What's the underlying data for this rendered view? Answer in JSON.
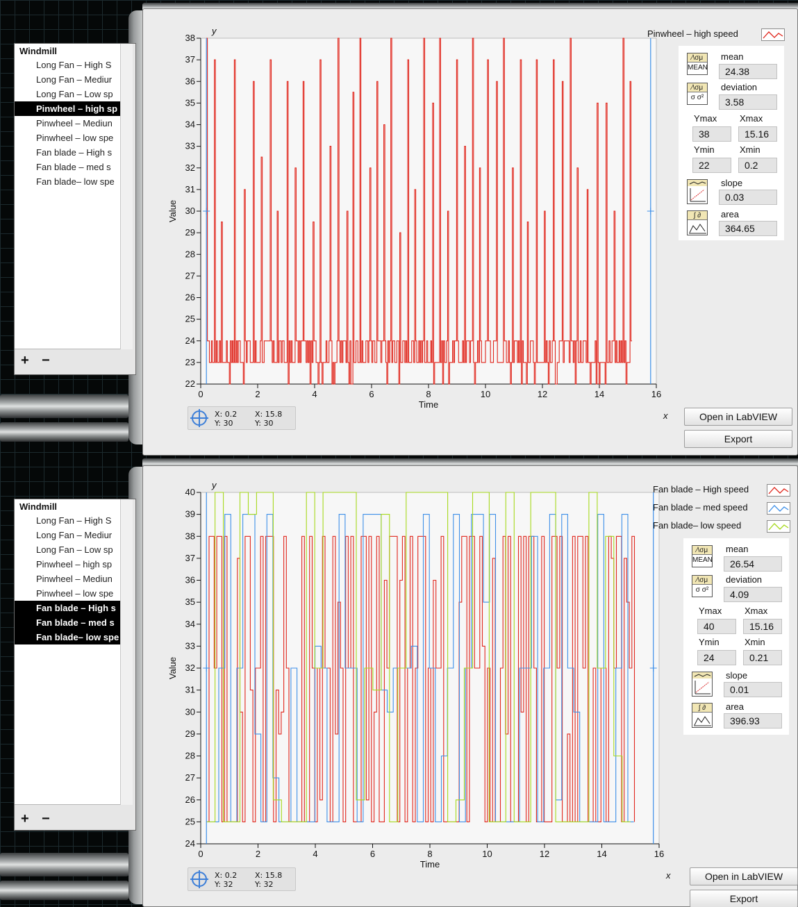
{
  "colors": {
    "red": "#e0251b",
    "blue": "#3d8fe8",
    "green": "#a6d91c"
  },
  "list": {
    "title": "Windmill",
    "items": [
      "Long Fan – High S",
      "Long Fan – Mediur",
      "Long Fan – Low sp",
      "Pinwheel –  high sp",
      "Pinwheel – Mediun",
      "Pinwheel – low spe",
      "Fan blade – High s",
      "Fan blade – med s",
      "Fan blade– low spe"
    ],
    "add_label": "+",
    "remove_label": "−"
  },
  "panels": [
    {
      "selected": [
        3
      ],
      "legend": [
        {
          "name": "Pinwheel –  high speed",
          "color": "red"
        }
      ],
      "stats": {
        "mean": "24.38",
        "deviation": "3.58",
        "ymax": "38",
        "xmax": "15.16",
        "ymin": "22",
        "xmin": "0.2",
        "slope": "0.03",
        "area": "364.65"
      },
      "cursor": {
        "x1": "X:  0.2",
        "y1": "Y:  30",
        "x2": "X:  15.8",
        "y2": "Y:  30"
      }
    },
    {
      "selected": [
        6,
        7,
        8
      ],
      "legend": [
        {
          "name": "Fan blade – High speed",
          "color": "red"
        },
        {
          "name": "Fan blade – med speed",
          "color": "blue"
        },
        {
          "name": "Fan blade– low speed",
          "color": "green"
        }
      ],
      "stats": {
        "mean": "26.54",
        "deviation": "4.09",
        "ymax": "40",
        "xmax": "15.16",
        "ymin": "24",
        "xmin": "0.21",
        "slope": "0.01",
        "area": "396.93"
      },
      "cursor": {
        "x1": "X:  0.2",
        "y1": "Y:  32",
        "x2": "X:  15.8",
        "y2": "Y:  32"
      }
    }
  ],
  "labels": {
    "mean": "mean",
    "deviation": "deviation",
    "ymax": "Ymax",
    "xmax": "Xmax",
    "ymin": "Ymin",
    "xmin": "Xmin",
    "slope": "slope",
    "area": "area",
    "mean_icon": "MEAN",
    "dev_icon": "σ σ²",
    "stat_icon": "⁄\\σμ",
    "area_icon": "∫ ∂",
    "open_button": "Open in LabVIEW",
    "export_button": "Export"
  },
  "chart_data": [
    {
      "type": "line",
      "xlabel": "Time",
      "ylabel": "Value",
      "x_axis_name": "x",
      "y_axis_name": "y",
      "xlim": [
        0,
        16
      ],
      "ylim": [
        22,
        38
      ],
      "xticks": [
        0,
        2,
        4,
        6,
        8,
        10,
        12,
        14,
        16
      ],
      "yticks": [
        22,
        23,
        24,
        25,
        26,
        27,
        28,
        29,
        30,
        31,
        32,
        33,
        34,
        35,
        36,
        37,
        38
      ],
      "cursors_x": [
        0.2,
        15.8
      ],
      "cursor_y": 30,
      "series": [
        {
          "color": "red",
          "baseline": [
            23,
            24
          ],
          "floor": 22,
          "x_range": [
            0.2,
            15.16
          ],
          "spikes": [
            [
              0.2,
              38
            ],
            [
              0.5,
              37
            ],
            [
              0.75,
              29.5
            ],
            [
              1.2,
              37
            ],
            [
              1.55,
              31
            ],
            [
              1.85,
              36
            ],
            [
              2.15,
              32.5
            ],
            [
              2.45,
              37
            ],
            [
              2.7,
              30
            ],
            [
              3.05,
              36
            ],
            [
              3.35,
              32
            ],
            [
              3.6,
              36
            ],
            [
              3.95,
              29.5
            ],
            [
              4.2,
              37
            ],
            [
              4.55,
              33
            ],
            [
              4.85,
              38
            ],
            [
              5.15,
              30
            ],
            [
              5.35,
              35.5
            ],
            [
              5.6,
              38
            ],
            [
              5.95,
              32
            ],
            [
              6.2,
              36
            ],
            [
              6.45,
              34
            ],
            [
              6.7,
              38
            ],
            [
              7.0,
              29
            ],
            [
              7.3,
              37
            ],
            [
              7.55,
              31
            ],
            [
              7.85,
              38
            ],
            [
              8.15,
              35
            ],
            [
              8.4,
              38
            ],
            [
              8.7,
              30
            ],
            [
              9.0,
              37
            ],
            [
              9.3,
              33
            ],
            [
              9.55,
              38
            ],
            [
              9.8,
              32
            ],
            [
              10.1,
              37
            ],
            [
              10.4,
              36
            ],
            [
              10.65,
              38
            ],
            [
              10.95,
              32
            ],
            [
              11.25,
              37
            ],
            [
              11.5,
              29.5
            ],
            [
              11.8,
              37
            ],
            [
              12.1,
              30
            ],
            [
              12.4,
              37
            ],
            [
              12.7,
              36
            ],
            [
              13.0,
              38
            ],
            [
              13.25,
              32
            ],
            [
              13.6,
              31
            ],
            [
              13.95,
              35
            ],
            [
              14.25,
              35
            ],
            [
              14.55,
              30
            ],
            [
              14.85,
              38
            ],
            [
              15.1,
              36
            ]
          ]
        }
      ]
    },
    {
      "type": "line",
      "xlabel": "Time",
      "ylabel": "Value",
      "x_axis_name": "x",
      "y_axis_name": "y",
      "xlim": [
        0,
        16
      ],
      "ylim": [
        24,
        40
      ],
      "xticks": [
        0,
        2,
        4,
        6,
        8,
        10,
        12,
        14,
        16
      ],
      "yticks": [
        24,
        25,
        26,
        27,
        28,
        29,
        30,
        31,
        32,
        33,
        34,
        35,
        36,
        37,
        38,
        39,
        40
      ],
      "cursors_x": [
        0.2,
        15.8
      ],
      "cursor_y": 32,
      "series": [
        {
          "color": "red",
          "x_range": [
            0.2,
            15.16
          ],
          "low": 25,
          "high": 38,
          "step": 0.09
        },
        {
          "color": "blue",
          "x_range": [
            0.21,
            15.16
          ],
          "low": 25,
          "high": 39,
          "step": 0.21
        },
        {
          "color": "green",
          "x_range": [
            0.21,
            15.16
          ],
          "low": 25,
          "high": 40,
          "step": 0.29
        }
      ]
    }
  ]
}
